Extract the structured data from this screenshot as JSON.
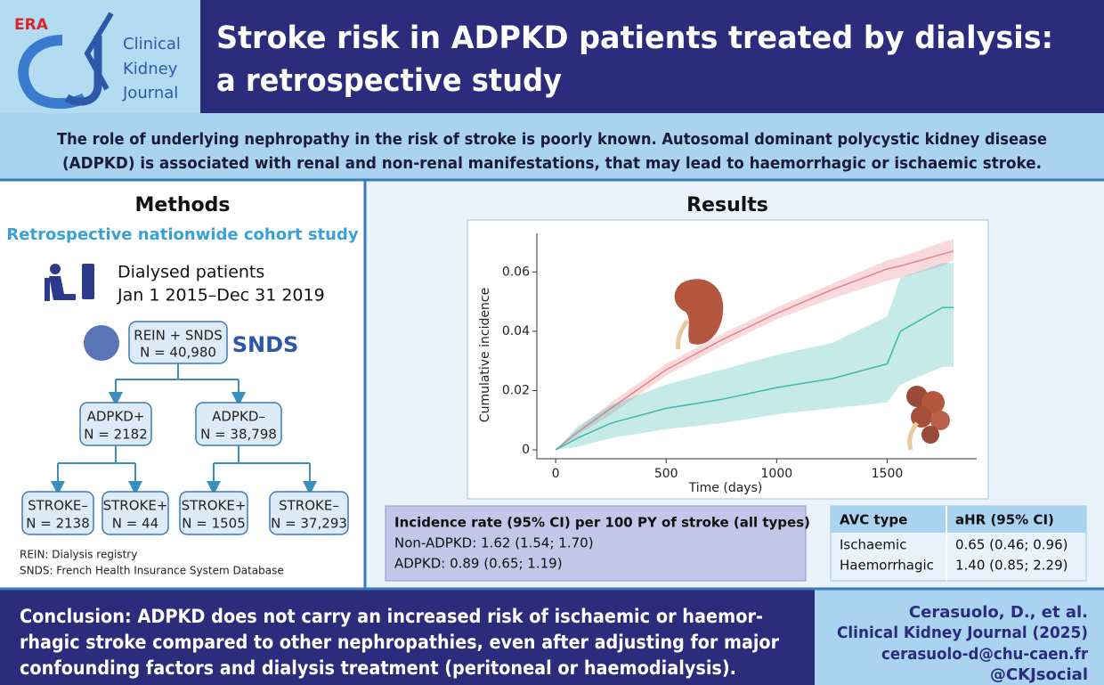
{
  "header": {
    "logo_org": "ERA",
    "logo_lines": [
      "Clinical",
      "Kidney",
      "Journal"
    ],
    "title_lines": [
      "Stroke risk in ADPKD patients treated by dialysis:",
      "a retrospective study"
    ]
  },
  "intro_lines": [
    "The role of underlying nephropathy in the risk of stroke is poorly known. Autosomal dominant polycystic kidney disease",
    "(ADPKD) is associated with renal and non-renal manifestations, that may lead to haemorrhagic or ischaemic stroke."
  ],
  "methods": {
    "heading": "Methods",
    "subtitle": "Retrospective nationwide cohort study",
    "patients_lines": [
      "Dialysed patients",
      "Jan 1 2015–Dec 31 2019"
    ],
    "source_box": [
      "REIN + SNDS",
      "N = 40,980"
    ],
    "snds_logo": "SNDS",
    "groups": [
      [
        "ADPKD+",
        "N = 2182"
      ],
      [
        "ADPKD–",
        "N = 38,798"
      ]
    ],
    "outcomes": [
      [
        "STROKE–",
        "N = 2138"
      ],
      [
        "STROKE+",
        "N = 44"
      ],
      [
        "STROKE+",
        "N = 1505"
      ],
      [
        "STROKE–",
        "N = 37,293"
      ]
    ],
    "notes": [
      "REIN: Dialysis registry",
      "SNDS: French Health Insurance System Database"
    ]
  },
  "results": {
    "heading": "Results",
    "incidence": {
      "title": "Incidence rate (95% CI) per 100 PY of stroke (all types)",
      "rows": [
        "Non-ADPKD: 1.62 (1.54; 1.70)",
        "ADPKD: 0.89 (0.65; 1.19)"
      ]
    },
    "hr_table": {
      "header": [
        "AVC type",
        "aHR (95% CI)"
      ],
      "rows": [
        [
          "Ischaemic",
          "0.65 (0.46; 0.96)"
        ],
        [
          "Haemorrhagic",
          "1.40 (0.85; 2.29)"
        ]
      ]
    }
  },
  "chart_data": {
    "type": "line",
    "xlabel": "Time (days)",
    "ylabel": "Cumulative incidence",
    "x": [
      0,
      100,
      250,
      500,
      750,
      1000,
      1250,
      1500,
      1560,
      1750,
      1800
    ],
    "series": [
      {
        "color": "#e8848c",
        "values": [
          0,
          0.006,
          0.014,
          0.027,
          0.037,
          0.046,
          0.054,
          0.061,
          0.062,
          0.066,
          0.067
        ],
        "lower": [
          0,
          0.005,
          0.012,
          0.025,
          0.035,
          0.044,
          0.051,
          0.057,
          0.058,
          0.062,
          0.064
        ],
        "upper": [
          0,
          0.007,
          0.016,
          0.029,
          0.039,
          0.048,
          0.056,
          0.064,
          0.065,
          0.07,
          0.071
        ]
      },
      {
        "color": "#3fb8b0",
        "values": [
          0,
          0.004,
          0.009,
          0.014,
          0.017,
          0.021,
          0.024,
          0.029,
          0.04,
          0.048,
          0.048
        ],
        "lower": [
          0,
          0.001,
          0.004,
          0.007,
          0.009,
          0.012,
          0.014,
          0.016,
          0.022,
          0.028,
          0.028
        ],
        "upper": [
          0,
          0.008,
          0.015,
          0.022,
          0.027,
          0.032,
          0.036,
          0.045,
          0.058,
          0.063,
          0.063
        ]
      }
    ],
    "xlim": [
      -85,
      1905
    ],
    "ylim": [
      -0.003,
      0.073
    ],
    "xticks": [
      0,
      500,
      1000,
      1500
    ],
    "yticks": [
      0,
      0.02,
      0.04,
      0.06
    ]
  },
  "conclusion_lines": [
    "Conclusion: ADPKD does not carry an increased risk of ischaemic or haemor-",
    "rhagic stroke compared to other nephropathies, even after adjusting for major",
    "confounding factors and dialysis treatment (peritoneal or haemodialysis)."
  ],
  "citation_lines": [
    "Cerasuolo, D., et al.",
    "Clinical Kidney Journal (2025)",
    "cerasuolo-d@chu-caen.fr",
    "@CKJsocial"
  ]
}
